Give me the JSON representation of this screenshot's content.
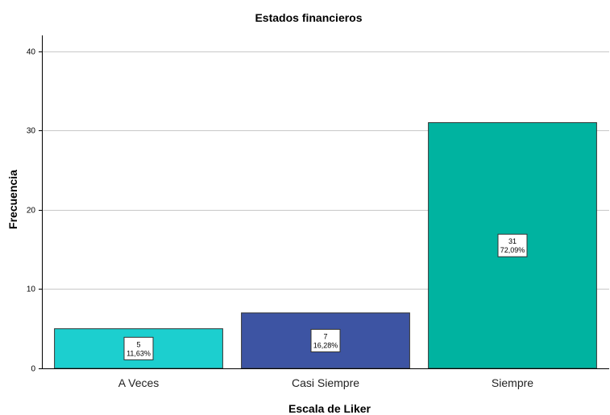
{
  "chart_data": {
    "type": "bar",
    "title": "Estados financieros",
    "xlabel": "Escala de Liker",
    "ylabel": "Frecuencia",
    "categories": [
      "A Veces",
      "Casi Siempre",
      "Siempre"
    ],
    "values": [
      5,
      7,
      31
    ],
    "percent_labels": [
      "11,63%",
      "16,28%",
      "72,09%"
    ],
    "colors": [
      "#1ccfcf",
      "#3d54a3",
      "#00b3a0"
    ],
    "ylim": [
      0,
      42
    ],
    "yticks": [
      0,
      10,
      20,
      30,
      40
    ],
    "grid": true,
    "legend": "none"
  }
}
